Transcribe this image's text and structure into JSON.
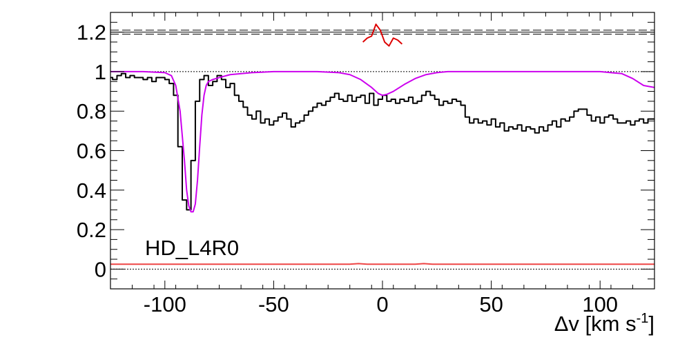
{
  "chart_data": {
    "type": "line",
    "title": "",
    "xlabel_main": "Δv [km s",
    "xlabel_sup": "-1",
    "xlabel_close": "]",
    "ylabel": "",
    "xlim": [
      -125,
      125
    ],
    "ylim": [
      -0.1,
      1.3
    ],
    "x_ticks": [
      -100,
      -50,
      0,
      50,
      100
    ],
    "x_tick_labels": [
      "-100",
      "-50",
      "0",
      "50",
      "100"
    ],
    "y_ticks": [
      0,
      0.2,
      0.4,
      0.6,
      0.8,
      1.0,
      1.2
    ],
    "y_tick_labels": [
      "0",
      "0.2",
      "0.4",
      "0.6",
      "0.8",
      "1",
      "1.2"
    ],
    "grid": false,
    "annotation": "HD_L4R0",
    "colors": {
      "spectrum": "#000000",
      "model": "#cc00ee",
      "error": "#ee4444",
      "residual": "#dd0000",
      "reference": "#000000"
    },
    "reference_lines": [
      {
        "name": "continuum",
        "y": 1.0,
        "style": "dotted"
      },
      {
        "name": "zero",
        "y": 0.0,
        "style": "dotted"
      },
      {
        "name": "residual-center",
        "y": 1.2,
        "style": "solid"
      },
      {
        "name": "residual-upper",
        "y": 1.21,
        "style": "dashed"
      },
      {
        "name": "residual-lower",
        "y": 1.19,
        "style": "dashed"
      }
    ],
    "series": [
      {
        "kind": "step",
        "color": "#000000",
        "x": [
          -125,
          -123,
          -121,
          -119,
          -117,
          -115,
          -113,
          -111,
          -109,
          -107,
          -105,
          -103,
          -101,
          -99,
          -97,
          -95,
          -93,
          -91,
          -89,
          -87,
          -85,
          -83,
          -81,
          -79,
          -77,
          -75,
          -73,
          -71,
          -69,
          -67,
          -65,
          -63,
          -61,
          -59,
          -57,
          -55,
          -53,
          -51,
          -49,
          -47,
          -45,
          -43,
          -41,
          -39,
          -37,
          -35,
          -33,
          -31,
          -29,
          -27,
          -25,
          -23,
          -21,
          -19,
          -17,
          -15,
          -13,
          -11,
          -9,
          -7,
          -5,
          -3,
          -1,
          1,
          3,
          5,
          7,
          9,
          11,
          13,
          15,
          17,
          19,
          21,
          23,
          25,
          27,
          29,
          31,
          33,
          35,
          37,
          39,
          41,
          43,
          45,
          47,
          49,
          51,
          53,
          55,
          57,
          59,
          61,
          63,
          65,
          67,
          69,
          71,
          73,
          75,
          77,
          79,
          81,
          83,
          85,
          87,
          89,
          91,
          93,
          95,
          97,
          99,
          101,
          103,
          105,
          107,
          109,
          111,
          113,
          115,
          117,
          119,
          121,
          123,
          125
        ],
        "y": [
          0.97,
          0.96,
          0.98,
          0.99,
          0.97,
          0.98,
          0.97,
          0.97,
          0.96,
          0.97,
          0.95,
          0.97,
          0.97,
          0.96,
          0.94,
          0.88,
          0.62,
          0.35,
          0.3,
          0.55,
          0.85,
          0.96,
          0.98,
          0.93,
          0.95,
          0.98,
          0.96,
          0.92,
          0.94,
          0.88,
          0.85,
          0.82,
          0.78,
          0.76,
          0.8,
          0.74,
          0.76,
          0.73,
          0.75,
          0.77,
          0.79,
          0.76,
          0.72,
          0.74,
          0.75,
          0.78,
          0.8,
          0.82,
          0.84,
          0.83,
          0.85,
          0.87,
          0.89,
          0.86,
          0.85,
          0.88,
          0.85,
          0.87,
          0.88,
          0.84,
          0.89,
          0.83,
          0.86,
          0.88,
          0.85,
          0.86,
          0.84,
          0.86,
          0.85,
          0.87,
          0.84,
          0.85,
          0.88,
          0.9,
          0.88,
          0.86,
          0.83,
          0.85,
          0.84,
          0.86,
          0.85,
          0.83,
          0.77,
          0.74,
          0.76,
          0.74,
          0.75,
          0.73,
          0.76,
          0.72,
          0.74,
          0.7,
          0.72,
          0.71,
          0.73,
          0.7,
          0.72,
          0.71,
          0.69,
          0.72,
          0.7,
          0.73,
          0.75,
          0.72,
          0.76,
          0.75,
          0.77,
          0.8,
          0.81,
          0.81,
          0.78,
          0.75,
          0.77,
          0.74,
          0.77,
          0.78,
          0.76,
          0.74,
          0.74,
          0.75,
          0.73,
          0.75,
          0.76,
          0.74,
          0.76,
          0.76
        ]
      },
      {
        "kind": "line",
        "color": "#cc00ee",
        "x": [
          -125,
          -110,
          -100,
          -97,
          -95,
          -93,
          -91,
          -90,
          -89,
          -88,
          -87,
          -86,
          -85,
          -84,
          -83,
          -82,
          -81,
          -80,
          -78,
          -75,
          -70,
          -60,
          -50,
          -40,
          -30,
          -20,
          -15,
          -10,
          -5,
          -2,
          0,
          2,
          5,
          10,
          15,
          20,
          25,
          30,
          40,
          60,
          80,
          100,
          110,
          115,
          120,
          125
        ],
        "y": [
          1.0,
          1.0,
          0.995,
          0.98,
          0.93,
          0.8,
          0.55,
          0.4,
          0.32,
          0.29,
          0.29,
          0.33,
          0.45,
          0.62,
          0.78,
          0.88,
          0.93,
          0.95,
          0.96,
          0.97,
          0.985,
          0.995,
          1.0,
          1.0,
          1.0,
          0.995,
          0.985,
          0.96,
          0.92,
          0.89,
          0.88,
          0.885,
          0.9,
          0.935,
          0.965,
          0.985,
          0.995,
          1.0,
          1.0,
          1.0,
          1.0,
          1.0,
          0.99,
          0.965,
          0.93,
          0.92
        ]
      },
      {
        "kind": "line",
        "color": "#ee4444",
        "x": [
          -125,
          -50,
          -15,
          -11,
          -7,
          0,
          15,
          19,
          23,
          27,
          60,
          125
        ],
        "y": [
          0.025,
          0.025,
          0.025,
          0.028,
          0.025,
          0.025,
          0.025,
          0.028,
          0.025,
          0.025,
          0.025,
          0.025
        ]
      },
      {
        "kind": "line",
        "color": "#dd0000",
        "x": [
          -9,
          -7,
          -5,
          -3,
          -1,
          1,
          3,
          5,
          7,
          9
        ],
        "y": [
          1.15,
          1.17,
          1.18,
          1.24,
          1.21,
          1.15,
          1.13,
          1.17,
          1.16,
          1.14
        ]
      }
    ]
  }
}
